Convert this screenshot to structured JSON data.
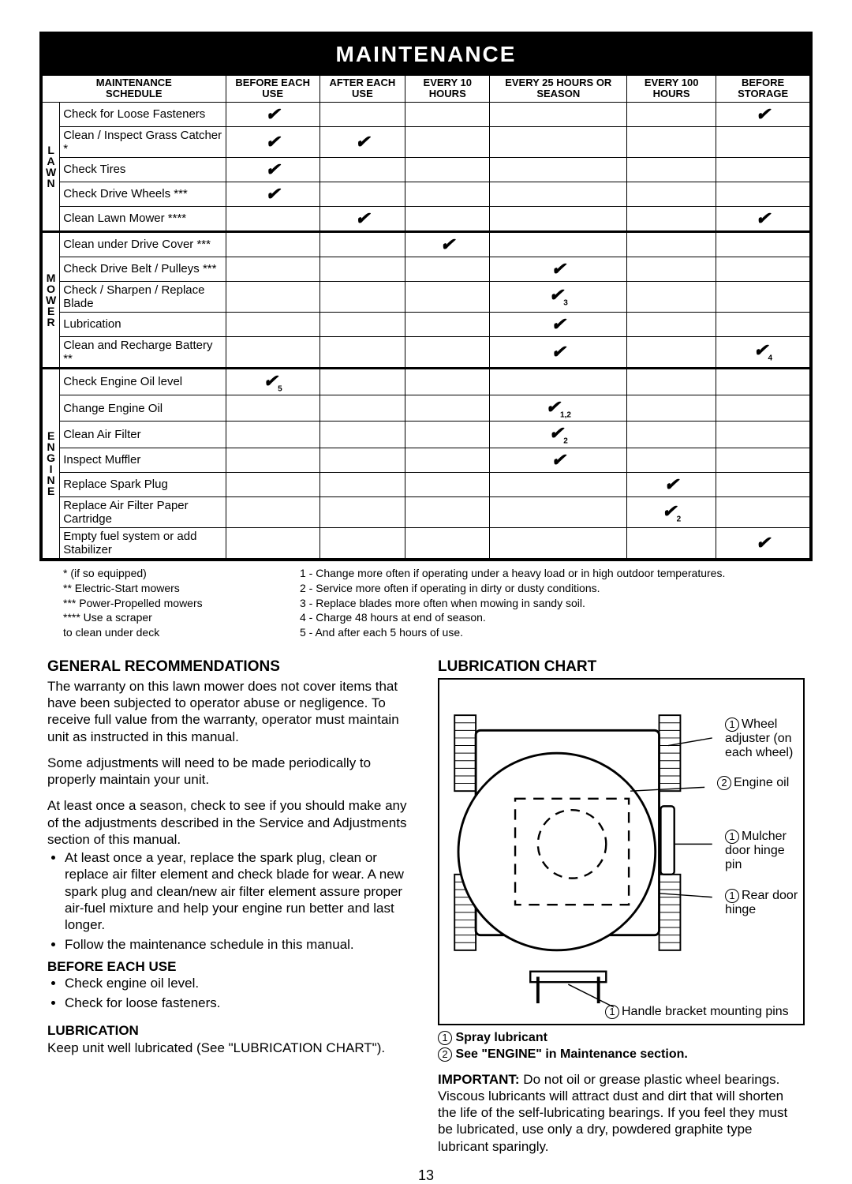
{
  "header_title": "MAINTENANCE",
  "schedule_title_line1": "MAINTENANCE",
  "schedule_title_line2": "SCHEDULE",
  "columns": [
    "BEFORE EACH USE",
    "AFTER EACH USE",
    "EVERY 10 HOURS",
    "EVERY 25 HOURS OR SEASON",
    "EVERY 100 HOURS",
    "BEFORE STORAGE"
  ],
  "categories": [
    {
      "label": "LAWN",
      "rows": [
        {
          "task": "Check for Loose Fasteners",
          "marks": [
            "✔",
            "",
            "",
            "",
            "",
            "✔"
          ]
        },
        {
          "task": "Clean / Inspect Grass Catcher *",
          "marks": [
            "✔",
            "✔",
            "",
            "",
            "",
            ""
          ]
        },
        {
          "task": "Check Tires",
          "marks": [
            "✔",
            "",
            "",
            "",
            "",
            ""
          ]
        },
        {
          "task": "Check Drive Wheels ***",
          "marks": [
            "✔",
            "",
            "",
            "",
            "",
            ""
          ]
        },
        {
          "task": "Clean Lawn Mower ****",
          "marks": [
            "",
            "✔",
            "",
            "",
            "",
            "✔"
          ]
        }
      ]
    },
    {
      "label": "MOWER",
      "rows": [
        {
          "task": "Clean under Drive Cover ***",
          "marks": [
            "",
            "",
            "✔",
            "",
            "",
            ""
          ]
        },
        {
          "task": "Check Drive Belt / Pulleys ***",
          "marks": [
            "",
            "",
            "",
            "✔",
            "",
            ""
          ]
        },
        {
          "task": "Check / Sharpen / Replace Blade",
          "marks": [
            "",
            "",
            "",
            "✔3",
            "",
            ""
          ]
        },
        {
          "task": "Lubrication",
          "marks": [
            "",
            "",
            "",
            "✔",
            "",
            ""
          ]
        },
        {
          "task": "Clean and Recharge Battery **",
          "marks": [
            "",
            "",
            "",
            "✔",
            "",
            "✔4"
          ]
        }
      ]
    },
    {
      "label": "ENGINE",
      "rows": [
        {
          "task": "Check Engine Oil level",
          "marks": [
            "✔5",
            "",
            "",
            "",
            "",
            ""
          ]
        },
        {
          "task": "Change Engine Oil",
          "marks": [
            "",
            "",
            "",
            "✔1,2",
            "",
            ""
          ]
        },
        {
          "task": "Clean Air Filter",
          "marks": [
            "",
            "",
            "",
            "✔2",
            "",
            ""
          ]
        },
        {
          "task": "Inspect Muffler",
          "marks": [
            "",
            "",
            "",
            "✔",
            "",
            ""
          ]
        },
        {
          "task": "Replace Spark Plug",
          "marks": [
            "",
            "",
            "",
            "",
            "✔",
            ""
          ]
        },
        {
          "task": "Replace Air Filter Paper Cartridge",
          "marks": [
            "",
            "",
            "",
            "",
            "✔2",
            ""
          ]
        },
        {
          "task": "Empty fuel system or add Stabilizer",
          "marks": [
            "",
            "",
            "",
            "",
            "",
            "✔"
          ]
        }
      ]
    }
  ],
  "footnotes_left": [
    "* (if so equipped)",
    "** Electric-Start mowers",
    "*** Power-Propelled mowers",
    "**** Use a scraper",
    "      to clean under deck"
  ],
  "footnotes_right": [
    "1 - Change more often if operating under a heavy load or in high outdoor temperatures.",
    "2 - Service more often if operating in dirty or dusty conditions.",
    "3 - Replace blades more often when mowing in sandy soil.",
    "4 - Charge 48 hours at end of season.",
    "5 - And after each 5 hours of use."
  ],
  "gen_rec_title": "GENERAL RECOMMENDATIONS",
  "gen_rec_p1": "The warranty on this lawn mower does not cover items that have been subjected to operator abuse or negligence. To receive full value from the warranty, operator must maintain unit as instructed in this manual.",
  "gen_rec_p2": "Some adjustments will need to be made periodically to properly maintain your unit.",
  "gen_rec_p3": "At least once a season, check to see if you should make any of the adjustments described in the Service and Adjustments section of this manual.",
  "gen_rec_bullets": [
    "At least once a year, replace the spark plug, clean or replace air filter element and check blade for wear. A new spark plug and clean/new air filter element assure proper air-fuel mixture and help your engine run better and last longer.",
    "Follow the maintenance schedule in this manual."
  ],
  "before_each_use_title": "BEFORE EACH USE",
  "before_each_use_items": [
    "Check engine oil level.",
    "Check for loose fasteners."
  ],
  "lubrication_title": "LUBRICATION",
  "lubrication_text": "Keep unit well lubricated (See \"LUBRICATION CHART\").",
  "lube_chart_title": "LUBRICATION CHART",
  "lube_labels": {
    "wheel": "Wheel adjuster (on each wheel)",
    "engine": "Engine oil",
    "mulcher": "Mulcher door hinge pin",
    "rear": "Rear door hinge",
    "handle": "Handle bracket mounting pins"
  },
  "lube_key_1": "Spray lubricant",
  "lube_key_2": "See \"ENGINE\" in Maintenance section.",
  "important_title": "IMPORTANT:",
  "important_text": "Do not oil or grease plastic wheel bearings. Viscous lubricants will attract dust and dirt that will shorten the life of the self-lubricating bearings. If you feel they must be lubricated, use only a dry, powdered graphite type lubricant sparingly.",
  "page_number": "13"
}
